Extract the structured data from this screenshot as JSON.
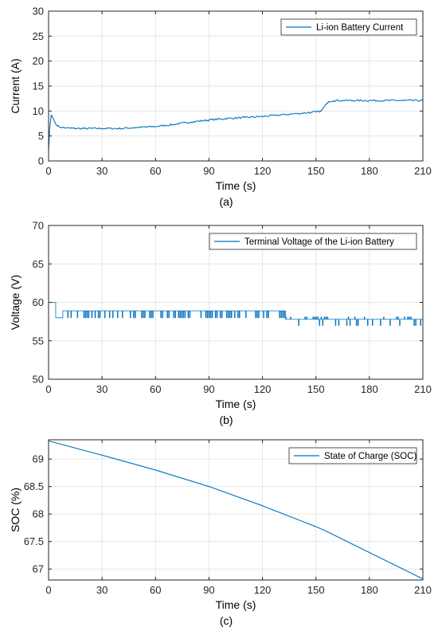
{
  "chart_data": [
    {
      "type": "line",
      "caption": "(a)",
      "xlabel": "Time (s)",
      "ylabel": "Current (A)",
      "xlim": [
        0,
        210
      ],
      "ylim": [
        0,
        30
      ],
      "xticks": [
        0,
        30,
        60,
        90,
        120,
        150,
        180,
        210
      ],
      "yticks": [
        0,
        5,
        10,
        15,
        20,
        25,
        30
      ],
      "grid": true,
      "legend_position": "top-right",
      "series": [
        {
          "name": "Li-ion Battery Current",
          "color": "#0072BD",
          "x": [
            0,
            0.6,
            1.5,
            2.5,
            4,
            6,
            10,
            15,
            20,
            30,
            40,
            50,
            60,
            70,
            80,
            90,
            100,
            110,
            120,
            130,
            140,
            150,
            153,
            155,
            157,
            160,
            170,
            180,
            190,
            200,
            210
          ],
          "y": [
            2,
            6.5,
            9.2,
            8.6,
            7.4,
            6.8,
            6.6,
            6.5,
            6.5,
            6.5,
            6.5,
            6.7,
            6.9,
            7.3,
            7.8,
            8.2,
            8.5,
            8.7,
            8.9,
            9.2,
            9.5,
            9.8,
            10.0,
            11.0,
            11.9,
            12.1,
            12.1,
            12.1,
            12.1,
            12.1,
            12.1
          ]
        }
      ]
    },
    {
      "type": "line",
      "caption": "(b)",
      "xlabel": "Time (s)",
      "ylabel": "Voltage (V)",
      "xlim": [
        0,
        210
      ],
      "ylim": [
        50,
        70
      ],
      "xticks": [
        0,
        30,
        60,
        90,
        120,
        150,
        180,
        210
      ],
      "yticks": [
        50,
        55,
        60,
        65,
        70
      ],
      "grid": true,
      "legend_position": "top-right",
      "series": [
        {
          "name": "Terminal Voltage of the Li-ion Battery",
          "color": "#0072BD",
          "x": [
            0,
            4,
            4,
            133,
            133,
            210
          ],
          "y": [
            60,
            60,
            58.9,
            58.9,
            57.8,
            57.8
          ],
          "dip_level": [
            58.0,
            58.0,
            57.0
          ],
          "segments_start": [
            4,
            4,
            133
          ],
          "segments_end": [
            133,
            133,
            210
          ]
        }
      ]
    },
    {
      "type": "line",
      "caption": "(c)",
      "xlabel": "Time (s)",
      "ylabel": "SOC (%)",
      "xlim": [
        0,
        210
      ],
      "ylim": [
        66.8,
        69.35
      ],
      "xticks": [
        0,
        30,
        60,
        90,
        120,
        150,
        180,
        210
      ],
      "yticks": [
        67,
        67.5,
        68,
        68.5,
        69
      ],
      "grid": true,
      "legend_position": "top-right",
      "series": [
        {
          "name": "State of Charge (SOC)",
          "color": "#0072BD",
          "x": [
            0,
            30,
            60,
            90,
            120,
            150,
            155,
            180,
            210
          ],
          "y": [
            69.33,
            69.07,
            68.8,
            68.5,
            68.15,
            67.77,
            67.7,
            67.3,
            66.82
          ]
        }
      ]
    }
  ]
}
